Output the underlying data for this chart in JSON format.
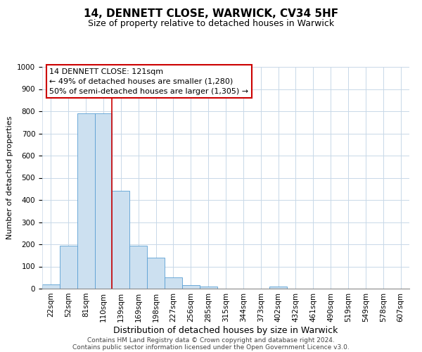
{
  "title": "14, DENNETT CLOSE, WARWICK, CV34 5HF",
  "subtitle": "Size of property relative to detached houses in Warwick",
  "xlabel": "Distribution of detached houses by size in Warwick",
  "ylabel": "Number of detached properties",
  "bin_labels": [
    "22sqm",
    "52sqm",
    "81sqm",
    "110sqm",
    "139sqm",
    "169sqm",
    "198sqm",
    "227sqm",
    "256sqm",
    "285sqm",
    "315sqm",
    "344sqm",
    "373sqm",
    "402sqm",
    "432sqm",
    "461sqm",
    "490sqm",
    "519sqm",
    "549sqm",
    "578sqm",
    "607sqm"
  ],
  "bar_values": [
    20,
    195,
    790,
    790,
    440,
    195,
    140,
    50,
    15,
    10,
    0,
    0,
    0,
    10,
    0,
    0,
    0,
    0,
    0,
    0,
    0
  ],
  "bar_color": "#cce0f0",
  "bar_edge_color": "#5a9fd4",
  "vline_color": "#cc0000",
  "vline_x_index": 3.5,
  "ylim": [
    0,
    1000
  ],
  "yticks": [
    0,
    100,
    200,
    300,
    400,
    500,
    600,
    700,
    800,
    900,
    1000
  ],
  "annotation_title": "14 DENNETT CLOSE: 121sqm",
  "annotation_line1": "← 49% of detached houses are smaller (1,280)",
  "annotation_line2": "50% of semi-detached houses are larger (1,305) →",
  "annotation_box_color": "#ffffff",
  "annotation_box_edge": "#cc0000",
  "grid_color": "#c8d8e8",
  "footer1": "Contains HM Land Registry data © Crown copyright and database right 2024.",
  "footer2": "Contains public sector information licensed under the Open Government Licence v3.0.",
  "title_fontsize": 11,
  "subtitle_fontsize": 9,
  "ylabel_fontsize": 8,
  "xlabel_fontsize": 9,
  "tick_fontsize": 7.5,
  "annotation_fontsize": 8,
  "footer_fontsize": 6.5
}
